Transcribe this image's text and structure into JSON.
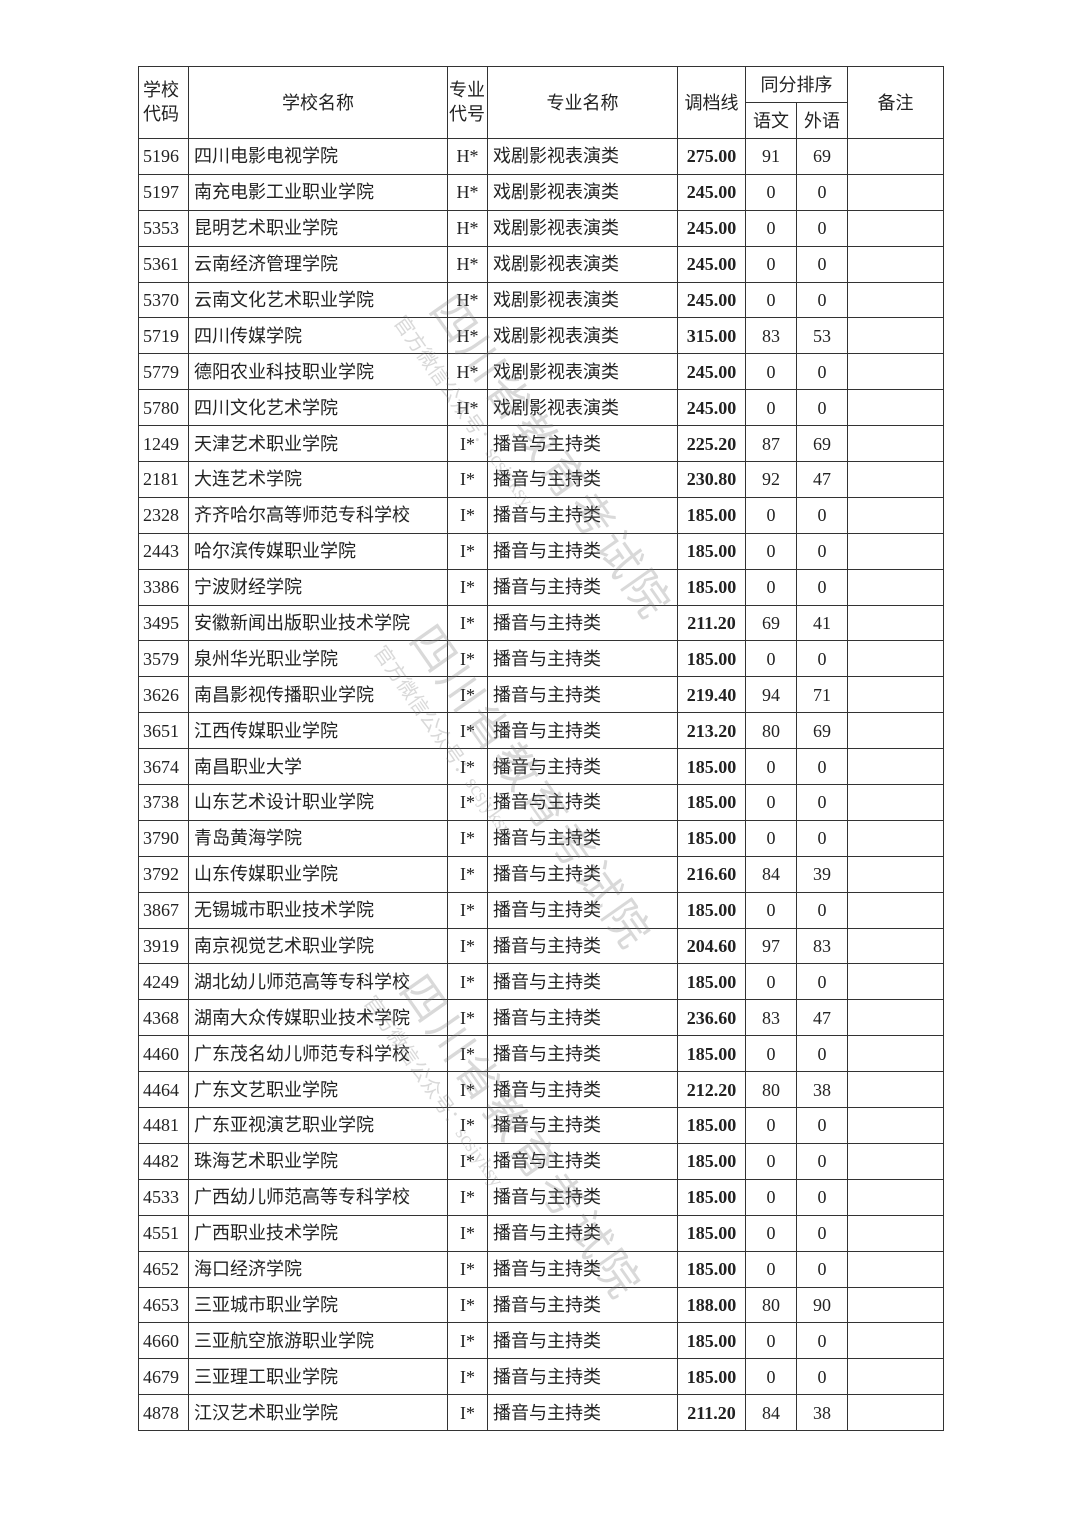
{
  "header": {
    "school_code": "学校代码",
    "school_name": "学校名称",
    "major_code": "专业代号",
    "major_name": "专业名称",
    "cutoff": "调档线",
    "tie_order": "同分排序",
    "chinese": "语文",
    "foreign": "外语",
    "remark": "备注"
  },
  "watermark": {
    "main": "四川省教育考试院",
    "sub": "官方微信公众号：scsjyksy"
  },
  "rows": [
    [
      "5196",
      "四川电影电视学院",
      "H*",
      "戏剧影视表演类",
      "275.00",
      "91",
      "69",
      ""
    ],
    [
      "5197",
      "南充电影工业职业学院",
      "H*",
      "戏剧影视表演类",
      "245.00",
      "0",
      "0",
      ""
    ],
    [
      "5353",
      "昆明艺术职业学院",
      "H*",
      "戏剧影视表演类",
      "245.00",
      "0",
      "0",
      ""
    ],
    [
      "5361",
      "云南经济管理学院",
      "H*",
      "戏剧影视表演类",
      "245.00",
      "0",
      "0",
      ""
    ],
    [
      "5370",
      "云南文化艺术职业学院",
      "H*",
      "戏剧影视表演类",
      "245.00",
      "0",
      "0",
      ""
    ],
    [
      "5719",
      "四川传媒学院",
      "H*",
      "戏剧影视表演类",
      "315.00",
      "83",
      "53",
      ""
    ],
    [
      "5779",
      "德阳农业科技职业学院",
      "H*",
      "戏剧影视表演类",
      "245.00",
      "0",
      "0",
      ""
    ],
    [
      "5780",
      "四川文化艺术学院",
      "H*",
      "戏剧影视表演类",
      "245.00",
      "0",
      "0",
      ""
    ],
    [
      "1249",
      "天津艺术职业学院",
      "I*",
      "播音与主持类",
      "225.20",
      "87",
      "69",
      ""
    ],
    [
      "2181",
      "大连艺术学院",
      "I*",
      "播音与主持类",
      "230.80",
      "92",
      "47",
      ""
    ],
    [
      "2328",
      "齐齐哈尔高等师范专科学校",
      "I*",
      "播音与主持类",
      "185.00",
      "0",
      "0",
      ""
    ],
    [
      "2443",
      "哈尔滨传媒职业学院",
      "I*",
      "播音与主持类",
      "185.00",
      "0",
      "0",
      ""
    ],
    [
      "3386",
      "宁波财经学院",
      "I*",
      "播音与主持类",
      "185.00",
      "0",
      "0",
      ""
    ],
    [
      "3495",
      "安徽新闻出版职业技术学院",
      "I*",
      "播音与主持类",
      "211.20",
      "69",
      "41",
      ""
    ],
    [
      "3579",
      "泉州华光职业学院",
      "I*",
      "播音与主持类",
      "185.00",
      "0",
      "0",
      ""
    ],
    [
      "3626",
      "南昌影视传播职业学院",
      "I*",
      "播音与主持类",
      "219.40",
      "94",
      "71",
      ""
    ],
    [
      "3651",
      "江西传媒职业学院",
      "I*",
      "播音与主持类",
      "213.20",
      "80",
      "69",
      ""
    ],
    [
      "3674",
      "南昌职业大学",
      "I*",
      "播音与主持类",
      "185.00",
      "0",
      "0",
      ""
    ],
    [
      "3738",
      "山东艺术设计职业学院",
      "I*",
      "播音与主持类",
      "185.00",
      "0",
      "0",
      ""
    ],
    [
      "3790",
      "青岛黄海学院",
      "I*",
      "播音与主持类",
      "185.00",
      "0",
      "0",
      ""
    ],
    [
      "3792",
      "山东传媒职业学院",
      "I*",
      "播音与主持类",
      "216.60",
      "84",
      "39",
      ""
    ],
    [
      "3867",
      "无锡城市职业技术学院",
      "I*",
      "播音与主持类",
      "185.00",
      "0",
      "0",
      ""
    ],
    [
      "3919",
      "南京视觉艺术职业学院",
      "I*",
      "播音与主持类",
      "204.60",
      "97",
      "83",
      ""
    ],
    [
      "4249",
      "湖北幼儿师范高等专科学校",
      "I*",
      "播音与主持类",
      "185.00",
      "0",
      "0",
      ""
    ],
    [
      "4368",
      "湖南大众传媒职业技术学院",
      "I*",
      "播音与主持类",
      "236.60",
      "83",
      "47",
      ""
    ],
    [
      "4460",
      "广东茂名幼儿师范专科学校",
      "I*",
      "播音与主持类",
      "185.00",
      "0",
      "0",
      ""
    ],
    [
      "4464",
      "广东文艺职业学院",
      "I*",
      "播音与主持类",
      "212.20",
      "80",
      "38",
      ""
    ],
    [
      "4481",
      "广东亚视演艺职业学院",
      "I*",
      "播音与主持类",
      "185.00",
      "0",
      "0",
      ""
    ],
    [
      "4482",
      "珠海艺术职业学院",
      "I*",
      "播音与主持类",
      "185.00",
      "0",
      "0",
      ""
    ],
    [
      "4533",
      "广西幼儿师范高等专科学校",
      "I*",
      "播音与主持类",
      "185.00",
      "0",
      "0",
      ""
    ],
    [
      "4551",
      "广西职业技术学院",
      "I*",
      "播音与主持类",
      "185.00",
      "0",
      "0",
      ""
    ],
    [
      "4652",
      "海口经济学院",
      "I*",
      "播音与主持类",
      "185.00",
      "0",
      "0",
      ""
    ],
    [
      "4653",
      "三亚城市职业学院",
      "I*",
      "播音与主持类",
      "188.00",
      "80",
      "90",
      ""
    ],
    [
      "4660",
      "三亚航空旅游职业学院",
      "I*",
      "播音与主持类",
      "185.00",
      "0",
      "0",
      ""
    ],
    [
      "4679",
      "三亚理工职业学院",
      "I*",
      "播音与主持类",
      "185.00",
      "0",
      "0",
      ""
    ],
    [
      "4878",
      "江汉艺术职业学院",
      "I*",
      "播音与主持类",
      "211.20",
      "84",
      "38",
      ""
    ]
  ]
}
